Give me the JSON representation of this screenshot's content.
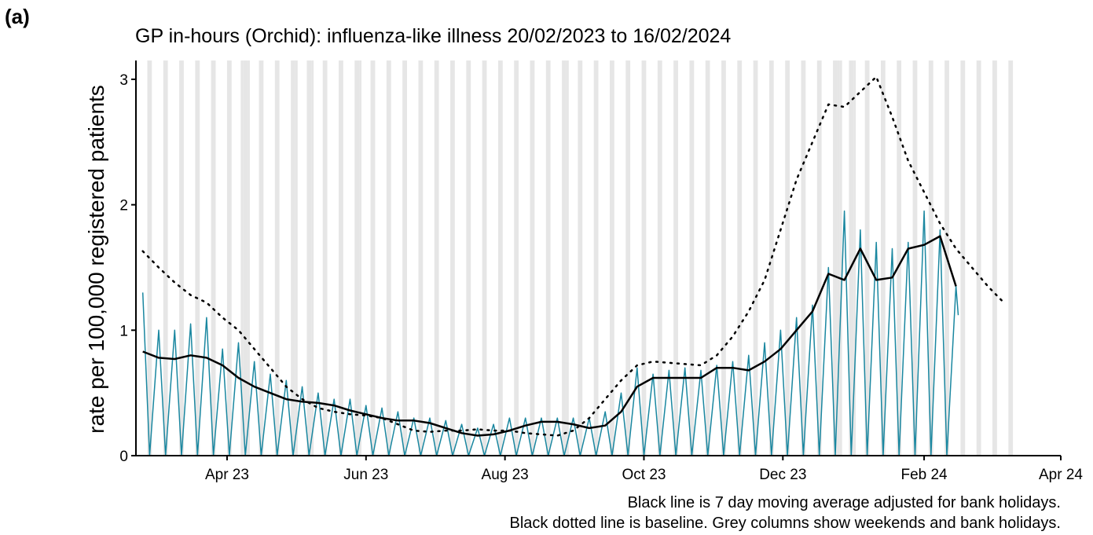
{
  "panel_label": "(a)",
  "chart_data": {
    "type": "line",
    "title": "GP in-hours (Orchid): influenza-like illness 20/02/2023 to 16/02/2024",
    "y_label": "rate per 100,000 registered patients",
    "notes": [
      "Black line is 7 day moving average adjusted for bank holidays.",
      "Black dotted line is baseline. Grey columns show weekends and bank holidays."
    ],
    "xlim": [
      0,
      406
    ],
    "xticks": [
      {
        "value": 40,
        "label": "Apr 23"
      },
      {
        "value": 101,
        "label": "Jun 23"
      },
      {
        "value": 162,
        "label": "Aug 23"
      },
      {
        "value": 223,
        "label": "Oct 23"
      },
      {
        "value": 284,
        "label": "Dec 23"
      },
      {
        "value": 346,
        "label": "Feb 24"
      },
      {
        "value": 406,
        "label": "Apr 24"
      }
    ],
    "ylim": [
      0,
      3.15
    ],
    "yticks": [
      0,
      1,
      2,
      3
    ],
    "shaded_color": "#e6e6e6",
    "weekend_starts": [
      5,
      12,
      19,
      26,
      33,
      40,
      47,
      54,
      61,
      68,
      75,
      82,
      89,
      96,
      103,
      110,
      117,
      124,
      131,
      138,
      145,
      152,
      159,
      166,
      173,
      180,
      187,
      194,
      201,
      208,
      215,
      222,
      229,
      236,
      243,
      250,
      257,
      264,
      271,
      278,
      285,
      292,
      299,
      306,
      313,
      320,
      327,
      334,
      341,
      348,
      355,
      362,
      369,
      376,
      383
    ],
    "bank_holidays": [
      46,
      49,
      70,
      77,
      98,
      189,
      308,
      309,
      315
    ],
    "series": [
      {
        "name": "daily rate",
        "color": "#1a87a0",
        "style": "solid",
        "width": 1.5,
        "x": [
          3,
          6,
          10,
          13,
          17,
          20,
          24,
          27,
          31,
          34,
          38,
          41,
          45,
          48,
          52,
          55,
          59,
          62,
          66,
          69,
          73,
          76,
          80,
          83,
          87,
          90,
          94,
          97,
          101,
          104,
          108,
          111,
          115,
          118,
          122,
          125,
          129,
          132,
          136,
          139,
          143,
          146,
          150,
          153,
          157,
          160,
          164,
          167,
          171,
          174,
          178,
          181,
          185,
          188,
          192,
          195,
          199,
          202,
          206,
          209,
          213,
          216,
          220,
          223,
          227,
          230,
          234,
          237,
          241,
          244,
          248,
          251,
          255,
          258,
          262,
          265,
          269,
          272,
          276,
          279,
          283,
          286,
          290,
          293,
          297,
          300,
          304,
          307,
          311,
          314,
          318,
          321,
          325,
          328,
          332,
          335,
          339,
          342,
          346,
          349,
          353,
          356,
          360,
          361
        ],
        "values": [
          1.3,
          0,
          1.0,
          0,
          1.0,
          0,
          1.05,
          0,
          1.1,
          0,
          0.85,
          0,
          0.9,
          0,
          0.75,
          0,
          0.65,
          0,
          0.6,
          0,
          0.55,
          0,
          0.5,
          0,
          0.45,
          0,
          0.45,
          0,
          0.4,
          0,
          0.38,
          0,
          0.35,
          0,
          0.3,
          0,
          0.3,
          0,
          0.28,
          0,
          0.25,
          0,
          0.22,
          0,
          0.25,
          0,
          0.3,
          0,
          0.3,
          0,
          0.3,
          0,
          0.3,
          0,
          0.3,
          0,
          0.3,
          0,
          0.35,
          0,
          0.5,
          0,
          0.7,
          0,
          0.65,
          0,
          0.68,
          0,
          0.7,
          0,
          0.68,
          0,
          0.72,
          0,
          0.75,
          0,
          0.8,
          0,
          0.9,
          0,
          1.0,
          0,
          1.1,
          0,
          1.2,
          0,
          1.5,
          0,
          1.95,
          0,
          1.8,
          0,
          1.7,
          0,
          1.65,
          0,
          1.7,
          0,
          1.95,
          0,
          1.8,
          0,
          1.35,
          1.12
        ]
      },
      {
        "name": "7 day moving average",
        "color": "#000000",
        "style": "solid",
        "width": 2.5,
        "x": [
          3,
          10,
          17,
          24,
          31,
          38,
          45,
          52,
          59,
          66,
          73,
          80,
          87,
          94,
          101,
          108,
          115,
          122,
          129,
          136,
          143,
          150,
          157,
          164,
          171,
          178,
          185,
          192,
          199,
          206,
          213,
          220,
          227,
          234,
          241,
          248,
          255,
          262,
          269,
          276,
          283,
          290,
          297,
          304,
          311,
          318,
          325,
          332,
          339,
          346,
          353,
          360
        ],
        "values": [
          0.83,
          0.78,
          0.77,
          0.8,
          0.78,
          0.72,
          0.62,
          0.55,
          0.5,
          0.45,
          0.43,
          0.42,
          0.4,
          0.36,
          0.33,
          0.3,
          0.28,
          0.28,
          0.26,
          0.22,
          0.18,
          0.16,
          0.17,
          0.2,
          0.24,
          0.27,
          0.27,
          0.25,
          0.22,
          0.24,
          0.35,
          0.55,
          0.62,
          0.62,
          0.62,
          0.62,
          0.7,
          0.7,
          0.68,
          0.75,
          0.85,
          1.0,
          1.15,
          1.45,
          1.4,
          1.65,
          1.4,
          1.42,
          1.65,
          1.68,
          1.75,
          1.35
        ]
      },
      {
        "name": "baseline",
        "color": "#000000",
        "style": "dotted",
        "width": 2.5,
        "x": [
          3,
          10,
          17,
          24,
          31,
          38,
          45,
          52,
          59,
          66,
          73,
          80,
          87,
          94,
          101,
          108,
          115,
          122,
          129,
          136,
          143,
          150,
          157,
          164,
          171,
          178,
          185,
          192,
          199,
          206,
          213,
          220,
          227,
          234,
          241,
          248,
          255,
          262,
          269,
          276,
          283,
          290,
          297,
          304,
          311,
          318,
          325,
          332,
          339,
          346,
          353,
          360,
          367,
          374,
          381
        ],
        "values": [
          1.63,
          1.5,
          1.38,
          1.28,
          1.22,
          1.1,
          1.0,
          0.85,
          0.7,
          0.55,
          0.45,
          0.38,
          0.35,
          0.33,
          0.32,
          0.3,
          0.25,
          0.2,
          0.19,
          0.2,
          0.2,
          0.21,
          0.2,
          0.2,
          0.18,
          0.17,
          0.16,
          0.2,
          0.3,
          0.45,
          0.6,
          0.72,
          0.75,
          0.74,
          0.73,
          0.72,
          0.8,
          0.95,
          1.15,
          1.4,
          1.8,
          2.2,
          2.5,
          2.8,
          2.78,
          2.9,
          3.02,
          2.7,
          2.35,
          2.1,
          1.85,
          1.65,
          1.5,
          1.35,
          1.22
        ]
      }
    ]
  }
}
